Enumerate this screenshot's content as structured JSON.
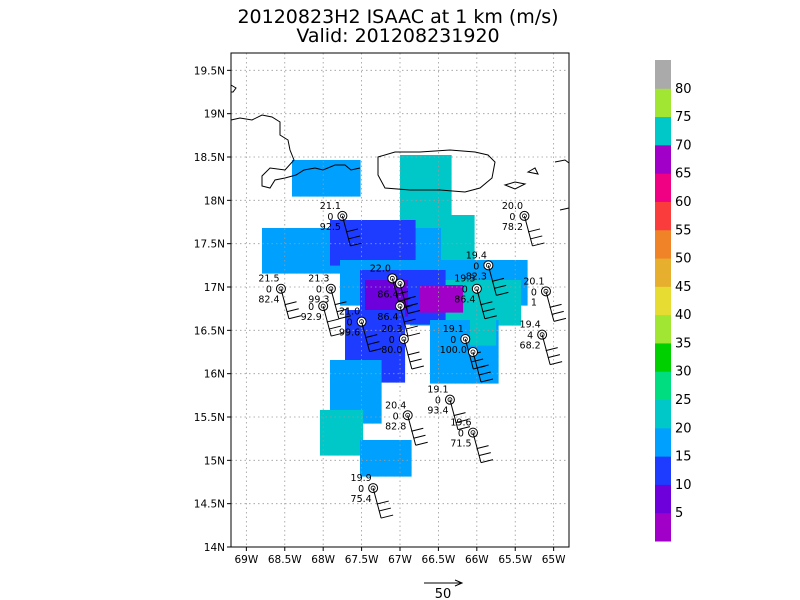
{
  "chart_data": {
    "type": "map-wind",
    "title_line1": "20120823H2 ISAAC at 1 km (m/s)",
    "title_line2": "Valid: 201208231920",
    "lon_ticks": [
      -69,
      -68.5,
      -68,
      -67.5,
      -67,
      -66.5,
      -66,
      -65.5,
      -65
    ],
    "lon_labels": [
      "69W",
      "68.5W",
      "68W",
      "67.5W",
      "67W",
      "66.5W",
      "66W",
      "65.5W",
      "65W"
    ],
    "lat_ticks": [
      19.5,
      19,
      18.5,
      18,
      17.5,
      17,
      16.5,
      16,
      15.5,
      15,
      14.5,
      14
    ],
    "lat_labels": [
      "19.5N",
      "19N",
      "18.5N",
      "18N",
      "17.5N",
      "17N",
      "16.5N",
      "16N",
      "15.5N",
      "15N",
      "14.5N",
      "14N"
    ],
    "lon_range": [
      -69.2,
      -64.8
    ],
    "lat_range": [
      14,
      19.7
    ],
    "grid": true,
    "colorbar": {
      "labels": [
        "5",
        "10",
        "15",
        "20",
        "25",
        "30",
        "35",
        "40",
        "45",
        "50",
        "55",
        "60",
        "65",
        "70",
        "75",
        "80"
      ],
      "colors": [
        "#a000c8",
        "#6e00dc",
        "#1e3cff",
        "#00a0ff",
        "#00c8c8",
        "#00dc80",
        "#00d000",
        "#a0e632",
        "#e6dc32",
        "#e6af2d",
        "#f08228",
        "#fa3c3c",
        "#f00082",
        "#a000c8",
        "#00c8c8",
        "#a0e632",
        "#aaaaaa"
      ]
    },
    "observations": [
      {
        "lon": -67.75,
        "lat": 17.82,
        "top": "21.1",
        "mid": "0",
        "bottom": "92.5"
      },
      {
        "lon": -65.38,
        "lat": 17.82,
        "top": "20.0",
        "mid": "0",
        "bottom": "78.2"
      },
      {
        "lon": -65.85,
        "lat": 17.25,
        "top": "19.4",
        "mid": "0",
        "bottom": "82.3"
      },
      {
        "lon": -68.55,
        "lat": 16.98,
        "top": "21.5",
        "mid": "0",
        "bottom": "82.4"
      },
      {
        "lon": -67.9,
        "lat": 16.98,
        "top": "21.3",
        "mid": "0",
        "bottom": "99.3"
      },
      {
        "lon": -67.1,
        "lat": 17.1,
        "top": "22.0",
        "mid": "",
        "bottom": ""
      },
      {
        "lon": -67.0,
        "lat": 17.04,
        "top": "",
        "mid": "",
        "bottom": "86.4"
      },
      {
        "lon": -66.0,
        "lat": 16.98,
        "top": "19.3",
        "mid": "0",
        "bottom": "86.4"
      },
      {
        "lon": -65.1,
        "lat": 16.95,
        "top": "20.1",
        "mid": "0",
        "bottom": "1"
      },
      {
        "lon": -68.0,
        "lat": 16.78,
        "top": "",
        "mid": "0",
        "bottom": "92.9"
      },
      {
        "lon": -67.5,
        "lat": 16.6,
        "top": "21.0",
        "mid": "0",
        "bottom": "99.6"
      },
      {
        "lon": -67.0,
        "lat": 16.78,
        "top": "",
        "mid": "",
        "bottom": "86.4"
      },
      {
        "lon": -66.95,
        "lat": 16.4,
        "top": "20.3",
        "mid": "0",
        "bottom": "80.0"
      },
      {
        "lon": -66.15,
        "lat": 16.4,
        "top": "19.1",
        "mid": "0",
        "bottom": "100.0"
      },
      {
        "lon": -66.05,
        "lat": 16.25,
        "top": "",
        "mid": "",
        "bottom": ""
      },
      {
        "lon": -65.15,
        "lat": 16.45,
        "top": "19.4",
        "mid": "4",
        "bottom": "68.2"
      },
      {
        "lon": -66.35,
        "lat": 15.7,
        "top": "19.1",
        "mid": "0",
        "bottom": "93.4"
      },
      {
        "lon": -66.9,
        "lat": 15.52,
        "top": "20.4",
        "mid": "0",
        "bottom": "82.8"
      },
      {
        "lon": -66.05,
        "lat": 15.32,
        "top": "19.6",
        "mid": "0",
        "bottom": "71.5"
      },
      {
        "lon": -67.35,
        "lat": 14.68,
        "top": "19.9",
        "mid": "0",
        "bottom": "75.4"
      }
    ],
    "reference_vector_label": "50"
  }
}
